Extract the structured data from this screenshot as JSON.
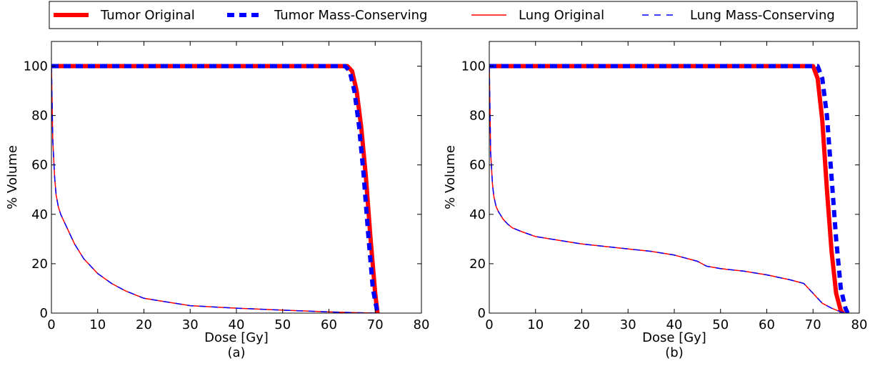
{
  "legend": {
    "placement": "top",
    "entries": [
      {
        "label": "Tumor Original",
        "color": "#ff0000",
        "style": "solid-thick"
      },
      {
        "label": "Tumor Mass-Conserving",
        "color": "#0000ff",
        "style": "dashed-thick"
      },
      {
        "label": "Lung Original",
        "color": "#ff0000",
        "style": "solid-thin"
      },
      {
        "label": "Lung Mass-Conserving",
        "color": "#0000ff",
        "style": "dashed-thin"
      }
    ]
  },
  "chart_data": [
    {
      "type": "line",
      "caption": "(a)",
      "xlabel": "Dose [Gy]",
      "ylabel": "% Volume",
      "xlim": [
        0,
        80
      ],
      "ylim": [
        0,
        110
      ],
      "xticks": [
        0,
        10,
        20,
        30,
        40,
        50,
        60,
        70,
        80
      ],
      "yticks": [
        0,
        20,
        40,
        60,
        80,
        100
      ],
      "grid": false,
      "series": [
        {
          "name": "Tumor Original",
          "color": "#ff0000",
          "x": [
            0,
            60,
            64,
            65,
            66,
            67,
            68,
            69,
            70,
            70.5
          ],
          "y": [
            100,
            100,
            100,
            98,
            90,
            75,
            55,
            30,
            8,
            0
          ]
        },
        {
          "name": "Tumor Mass-Conserving",
          "color": "#0000ff",
          "x": [
            0,
            60,
            63.5,
            64.5,
            65.5,
            66.5,
            67.5,
            68.5,
            69.5,
            70.5
          ],
          "y": [
            100,
            100,
            100,
            98,
            90,
            76,
            56,
            32,
            10,
            0
          ]
        },
        {
          "name": "Lung Original",
          "color": "#ff0000",
          "x": [
            0,
            0.3,
            0.7,
            1,
            1.5,
            2,
            3,
            4,
            5,
            7,
            10,
            13,
            16,
            20,
            25,
            30,
            40,
            50,
            60,
            65,
            70
          ],
          "y": [
            100,
            70,
            55,
            48,
            43,
            40,
            36,
            32,
            28,
            22,
            16,
            12,
            9,
            6,
            4.5,
            3,
            2,
            1.2,
            0.5,
            0.2,
            0
          ]
        },
        {
          "name": "Lung Mass-Conserving",
          "color": "#0000ff",
          "x": [
            0,
            0.3,
            0.7,
            1,
            1.5,
            2,
            3,
            4,
            5,
            7,
            10,
            13,
            16,
            20,
            25,
            30,
            40,
            50,
            60,
            65,
            70
          ],
          "y": [
            100,
            70,
            55,
            48,
            43,
            40,
            36,
            32,
            28,
            22,
            16,
            12,
            9,
            6,
            4.5,
            3,
            2,
            1.2,
            0.5,
            0.2,
            0
          ]
        }
      ]
    },
    {
      "type": "line",
      "caption": "(b)",
      "xlabel": "Dose [Gy]",
      "ylabel": "% Volume",
      "xlim": [
        0,
        80
      ],
      "ylim": [
        0,
        110
      ],
      "xticks": [
        0,
        10,
        20,
        30,
        40,
        50,
        60,
        70,
        80
      ],
      "yticks": [
        0,
        20,
        40,
        60,
        80,
        100
      ],
      "grid": false,
      "series": [
        {
          "name": "Tumor Original",
          "color": "#ff0000",
          "x": [
            0,
            69,
            70,
            71,
            72,
            73,
            74,
            75,
            76,
            76.5
          ],
          "y": [
            100,
            100,
            100,
            95,
            78,
            50,
            25,
            8,
            1,
            0
          ]
        },
        {
          "name": "Tumor Mass-Conserving",
          "color": "#0000ff",
          "x": [
            0,
            70,
            71,
            72,
            73,
            74,
            75,
            76,
            77,
            77.5
          ],
          "y": [
            100,
            100,
            100,
            95,
            80,
            55,
            30,
            10,
            2,
            0
          ]
        },
        {
          "name": "Lung Original",
          "color": "#ff0000",
          "x": [
            0,
            0.3,
            0.7,
            1,
            1.5,
            2,
            3,
            4,
            5,
            7,
            10,
            15,
            20,
            25,
            30,
            35,
            40,
            45,
            47,
            50,
            55,
            60,
            65,
            68,
            70,
            72,
            74,
            76,
            77
          ],
          "y": [
            100,
            65,
            52,
            47,
            43,
            41,
            38,
            36,
            34.5,
            33,
            31,
            29.5,
            28,
            27,
            26,
            25,
            23.5,
            21,
            19,
            18,
            17,
            15.5,
            13.5,
            12,
            8,
            4,
            2,
            0.5,
            0
          ]
        },
        {
          "name": "Lung Mass-Conserving",
          "color": "#0000ff",
          "x": [
            0,
            0.3,
            0.7,
            1,
            1.5,
            2,
            3,
            4,
            5,
            7,
            10,
            15,
            20,
            25,
            30,
            35,
            40,
            45,
            47,
            50,
            55,
            60,
            65,
            68,
            70,
            72,
            74,
            76,
            77
          ],
          "y": [
            100,
            65,
            52,
            47,
            43,
            41,
            38,
            36,
            34.5,
            33,
            31,
            29.5,
            28,
            27,
            26,
            25,
            23.5,
            21,
            19,
            18,
            17,
            15.5,
            13.5,
            12,
            8,
            4,
            2,
            0.5,
            0
          ]
        }
      ]
    }
  ]
}
